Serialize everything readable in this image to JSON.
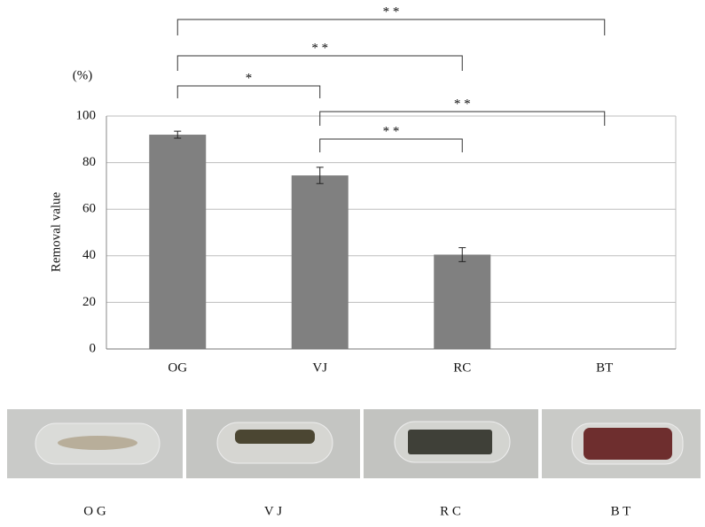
{
  "chart_data": {
    "type": "bar",
    "y_label": "Removal value",
    "y_unit": "(%)",
    "categories": [
      "OG",
      "VJ",
      "RC",
      "BT"
    ],
    "values": [
      92,
      74.5,
      40.5,
      0
    ],
    "errors": [
      1.5,
      3.5,
      3,
      0
    ],
    "color": "#808080",
    "ylim": [
      0,
      100
    ],
    "yticks": [
      0,
      20,
      40,
      60,
      80,
      100
    ],
    "grid": true,
    "brackets": [
      {
        "from": 0,
        "to": 3,
        "label": "* *"
      },
      {
        "from": 0,
        "to": 2,
        "label": "* *"
      },
      {
        "from": 0,
        "to": 1,
        "label": "*"
      },
      {
        "from": 1,
        "to": 3,
        "label": "* *"
      },
      {
        "from": 1,
        "to": 2,
        "label": "* *"
      }
    ]
  },
  "photos": {
    "labels": [
      "O G",
      "V J",
      "R C",
      "B T"
    ]
  }
}
